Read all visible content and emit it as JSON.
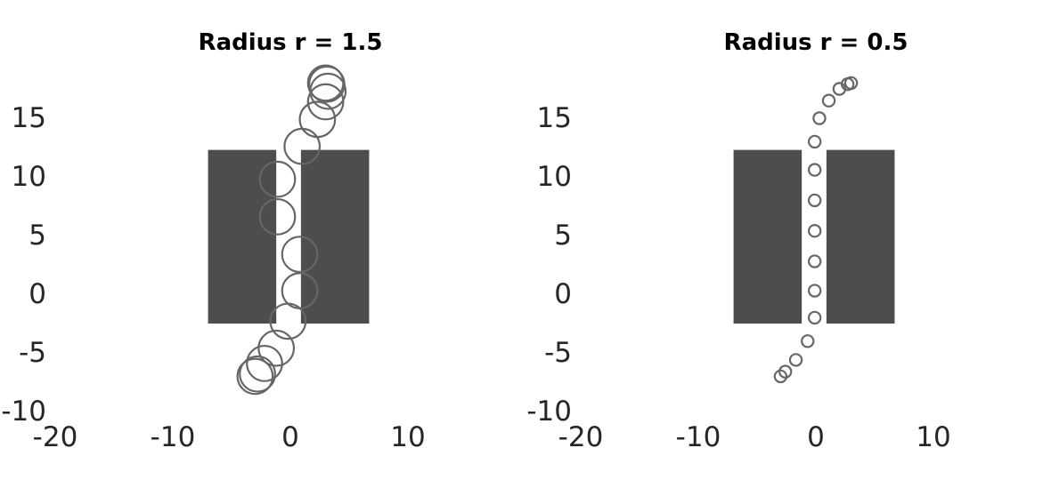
{
  "chart_data": [
    {
      "type": "scatter",
      "title": "Radius r = 1.5",
      "xlabel": "",
      "ylabel": "",
      "xlim": [
        -20,
        15
      ],
      "ylim": [
        -10,
        20
      ],
      "xticks": [
        "-20",
        "-10",
        "0",
        "10"
      ],
      "yticks": [
        "15",
        "10",
        "5",
        "0",
        "-5",
        "-10"
      ],
      "grid": false,
      "radius": 1.5,
      "obstacles": [
        {
          "x0": -7,
          "x1": -1.2,
          "y0": -2.5,
          "y1": 12.3
        },
        {
          "x0": 0.9,
          "x1": 6.7,
          "y0": -2.5,
          "y1": 12.3
        }
      ],
      "series": [
        {
          "x": [
            -3.0,
            -2.8,
            -2.2,
            -1.2,
            -0.2,
            0.8,
            0.8,
            -1.1,
            -1.1,
            1.0,
            2.3,
            3.0,
            3.2,
            3.1,
            3.0
          ],
          "y": [
            -7.0,
            -6.8,
            -5.9,
            -4.6,
            -2.3,
            0.3,
            3.4,
            6.6,
            9.8,
            12.6,
            14.9,
            16.4,
            17.3,
            17.9,
            18.0
          ]
        }
      ],
      "colors": {
        "obstacle": "#4d4d4d",
        "circle": "#666666"
      }
    },
    {
      "type": "scatter",
      "title": "Radius r = 0.5",
      "xlabel": "",
      "ylabel": "",
      "xlim": [
        -20,
        15
      ],
      "ylim": [
        -10,
        20
      ],
      "xticks": [
        "-20",
        "-10",
        "0",
        "10"
      ],
      "yticks": [
        "15",
        "10",
        "5",
        "0",
        "-5",
        "-10"
      ],
      "grid": false,
      "radius": 0.5,
      "obstacles": [
        {
          "x0": -7,
          "x1": -1.2,
          "y0": -2.5,
          "y1": 12.3
        },
        {
          "x0": 0.9,
          "x1": 6.7,
          "y0": -2.5,
          "y1": 12.3
        }
      ],
      "series": [
        {
          "x": [
            -3.0,
            -2.6,
            -1.7,
            -0.7,
            -0.1,
            -0.1,
            -0.1,
            -0.1,
            -0.1,
            -0.1,
            -0.1,
            0.3,
            1.1,
            2.0,
            2.7,
            3.0
          ],
          "y": [
            -7.0,
            -6.6,
            -5.6,
            -4.0,
            -2.0,
            0.3,
            2.8,
            5.4,
            8.0,
            10.6,
            13.0,
            15.0,
            16.5,
            17.5,
            17.9,
            18.0
          ]
        }
      ],
      "colors": {
        "obstacle": "#4d4d4d",
        "circle": "#666666"
      }
    }
  ]
}
